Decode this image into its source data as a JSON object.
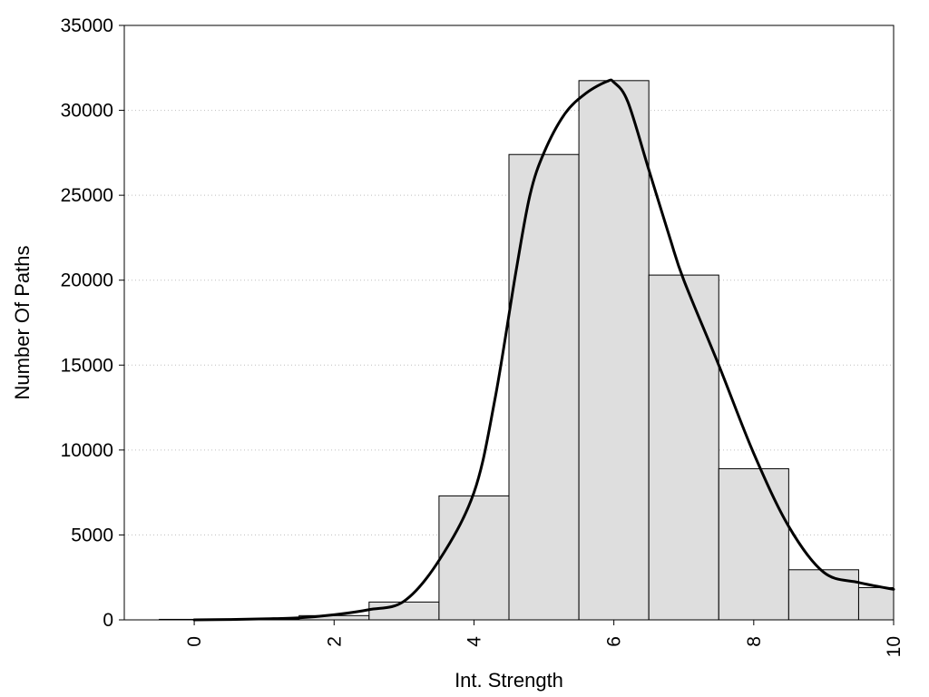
{
  "chart_data": {
    "type": "bar",
    "title": "",
    "xlabel": "Int. Strength",
    "ylabel": "Number Of Paths",
    "xlim": [
      -1,
      10
    ],
    "ylim": [
      0,
      35000
    ],
    "xticks": [
      0,
      2,
      4,
      6,
      8,
      10
    ],
    "yticks": [
      0,
      5000,
      10000,
      15000,
      20000,
      25000,
      30000,
      35000
    ],
    "grid": "horizontal dotted",
    "bar_color": "#dedede",
    "bins": [
      {
        "x": 0,
        "value": 30
      },
      {
        "x": 1,
        "value": 50
      },
      {
        "x": 2,
        "value": 250
      },
      {
        "x": 3,
        "value": 1050
      },
      {
        "x": 4,
        "value": 7300
      },
      {
        "x": 5,
        "value": 27400
      },
      {
        "x": 6,
        "value": 31750
      },
      {
        "x": 7,
        "value": 20300
      },
      {
        "x": 8,
        "value": 8900
      },
      {
        "x": 9,
        "value": 2950
      },
      {
        "x": 10,
        "value": 1900
      }
    ],
    "bin_width": 1,
    "density_curve": {
      "x": [
        0,
        0.5,
        1,
        1.5,
        2,
        2.5,
        3,
        3.5,
        4,
        4.3,
        4.6,
        4.8,
        5,
        5.3,
        5.6,
        5.9,
        6,
        6.2,
        6.5,
        6.8,
        7,
        7.5,
        8,
        8.5,
        9,
        9.5,
        10
      ],
      "y": [
        0,
        20,
        60,
        120,
        300,
        600,
        1100,
        3500,
        7500,
        13000,
        20500,
        25000,
        27500,
        29800,
        31000,
        31700,
        31650,
        30500,
        26500,
        22500,
        20000,
        15000,
        9800,
        5500,
        2800,
        2200,
        1800
      ]
    }
  }
}
